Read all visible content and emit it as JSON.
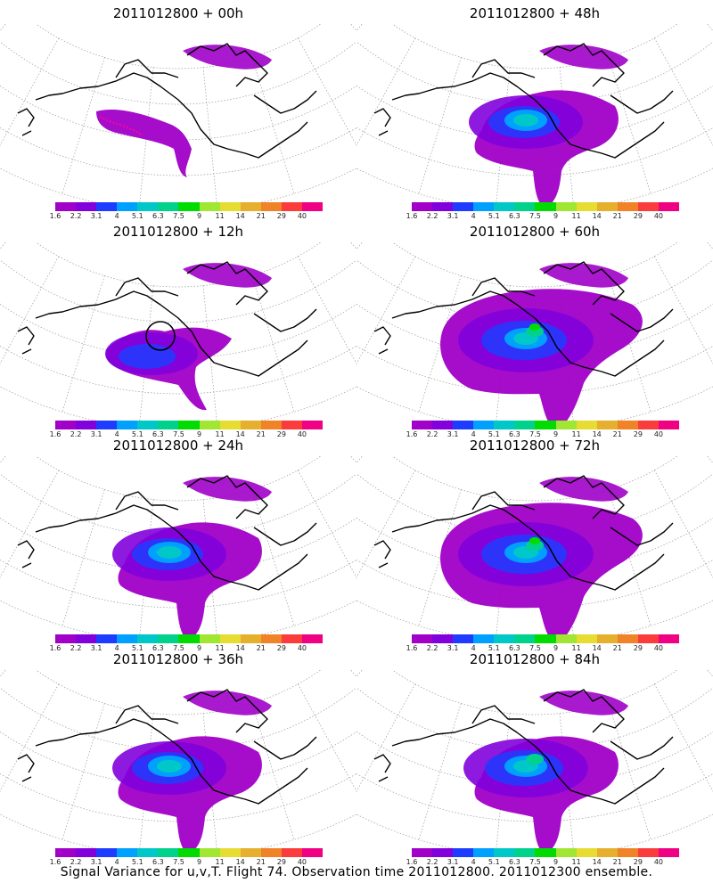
{
  "panels": [
    {
      "title": "2011012800 + 00h",
      "lead_hours": 0,
      "peak_level": 0
    },
    {
      "title": "2011012800 + 48h",
      "lead_hours": 48,
      "peak_level": 4
    },
    {
      "title": "2011012800 + 12h",
      "lead_hours": 12,
      "peak_level": 2
    },
    {
      "title": "2011012800 + 60h",
      "lead_hours": 60,
      "peak_level": 6
    },
    {
      "title": "2011012800 + 24h",
      "lead_hours": 24,
      "peak_level": 4
    },
    {
      "title": "2011012800 + 72h",
      "lead_hours": 72,
      "peak_level": 6
    },
    {
      "title": "2011012800 + 36h",
      "lead_hours": 36,
      "peak_level": 4
    },
    {
      "title": "2011012800 + 84h",
      "lead_hours": 84,
      "peak_level": 5
    }
  ],
  "colorbar": {
    "tick_labels": [
      "1.6",
      "2.2",
      "3.1",
      "4",
      "5.1",
      "6.3",
      "7.5",
      "9",
      "11",
      "14",
      "21",
      "29",
      "40"
    ],
    "colors": [
      "#a000c8",
      "#8200dc",
      "#1e3cff",
      "#00a0ff",
      "#00c8c8",
      "#00d28c",
      "#00dc00",
      "#a0e632",
      "#e6dc32",
      "#e6af2d",
      "#f08228",
      "#fa3c3c",
      "#f00082"
    ]
  },
  "footer": {
    "text": "Signal Variance for u,v,T. Flight 74. Observation time 2011012800. 2011012300 ensemble."
  }
}
